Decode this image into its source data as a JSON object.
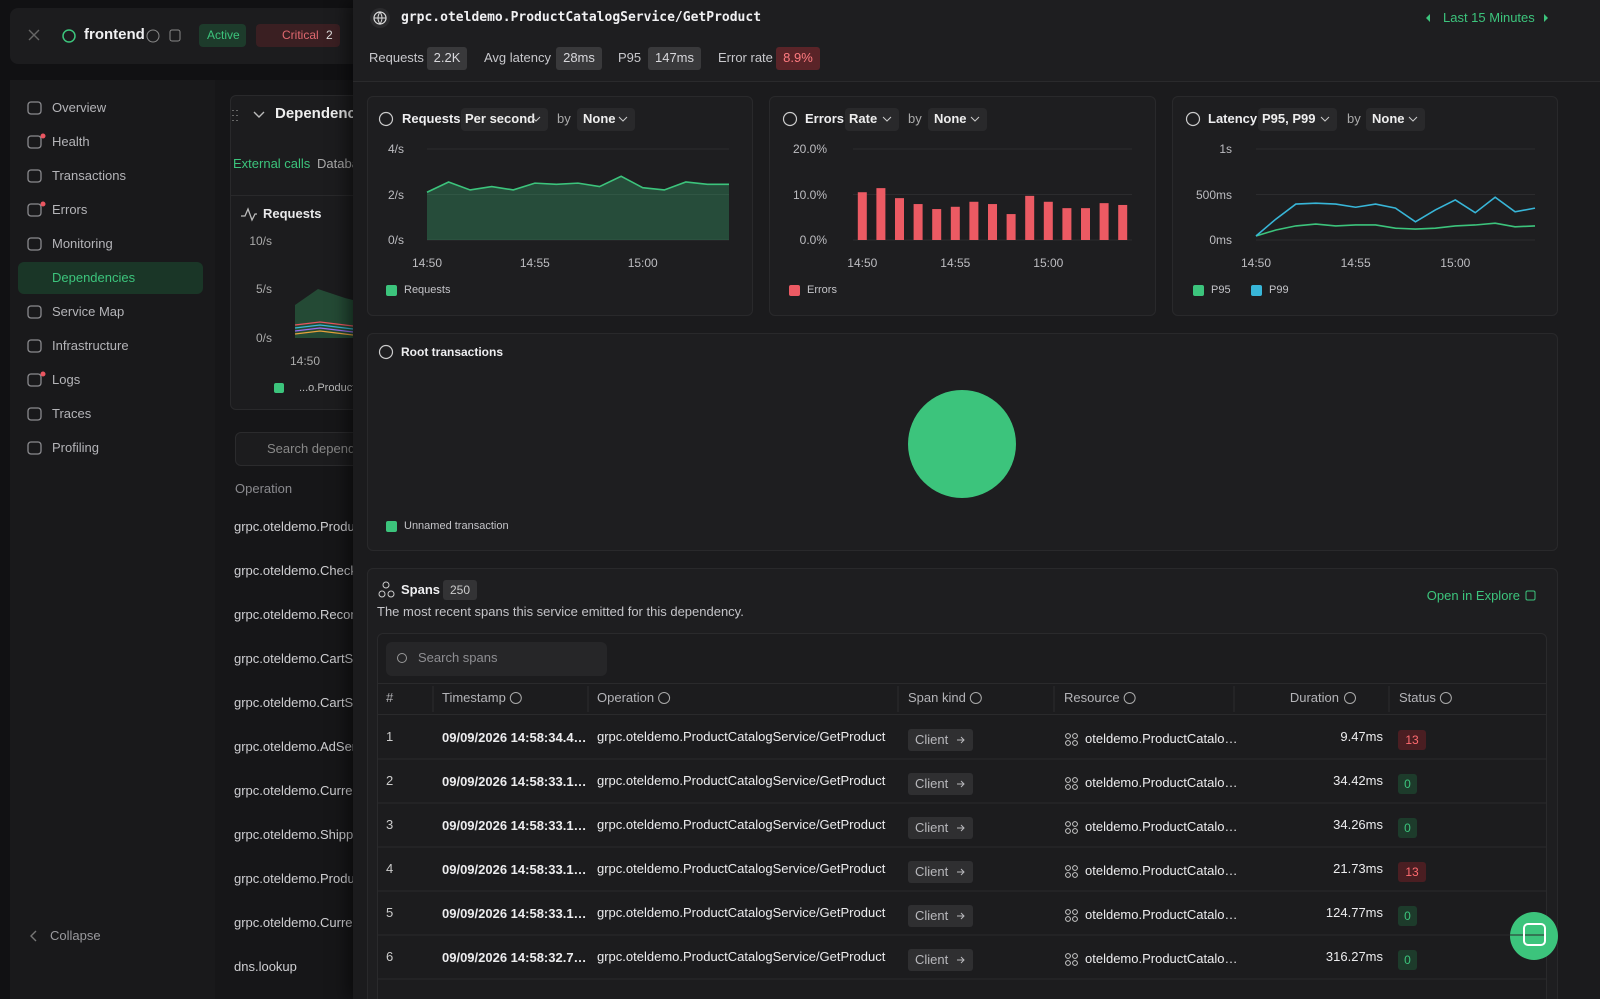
{
  "sidebar": {
    "service": "frontend",
    "state": "Active",
    "alert": "Critical",
    "alert_count": "2",
    "nav": [
      "Overview",
      "Health",
      "Transactions",
      "Errors",
      "Monitoring",
      "Dependencies",
      "Service Map",
      "Infrastructure",
      "Logs",
      "Traces",
      "Profiling"
    ],
    "collapse": "Collapse"
  },
  "background": {
    "title": "Dependenci",
    "tabs": [
      "External calls",
      "Databa"
    ],
    "chart_title": "Requests",
    "yticks": [
      "10/s",
      "5/s",
      "0/s"
    ],
    "xtick": "14:50",
    "legend": "...o.Product",
    "search": "Search depende",
    "column": "Operation",
    "operations": [
      "grpc.oteldemo.Produc",
      "grpc.oteldemo.Checko",
      "grpc.oteldemo.Recomn",
      "grpc.oteldemo.CartSer",
      "grpc.oteldemo.CartSer",
      "grpc.oteldemo.AdServ",
      "grpc.oteldemo.Curren",
      "grpc.oteldemo.Shippir",
      "grpc.oteldemo.Produc",
      "grpc.oteldemo.Curren",
      "dns.lookup"
    ]
  },
  "drawer": {
    "title": "grpc.oteldemo.ProductCatalogService/GetProduct",
    "time_range": "Last 15 Minutes",
    "stats": [
      {
        "label": "Requests",
        "value": "2.2K"
      },
      {
        "label": "Avg latency",
        "value": "28ms"
      },
      {
        "label": "P95",
        "value": "147ms"
      },
      {
        "label": "Error rate",
        "value": "8.9%"
      }
    ]
  },
  "chart_data": [
    {
      "type": "area",
      "title": "Requests",
      "controls": [
        "Per second",
        "by",
        "None"
      ],
      "categories": [
        "14:50",
        null,
        null,
        null,
        null,
        "14:55",
        null,
        null,
        null,
        null,
        "15:00",
        null,
        null,
        null,
        null
      ],
      "series": [
        {
          "name": "Requests",
          "color": "#3cc47c",
          "values": [
            2.1,
            2.55,
            2.2,
            2.35,
            2.2,
            2.5,
            2.45,
            2.5,
            2.35,
            2.8,
            2.3,
            2.2,
            2.55,
            2.45,
            2.45
          ]
        }
      ],
      "ylim": [
        0,
        4
      ],
      "yticks": [
        {
          "value": 0,
          "label": "0/s"
        },
        {
          "value": 2,
          "label": "2/s"
        },
        {
          "value": 4,
          "label": "4/s"
        }
      ],
      "grid": true
    },
    {
      "type": "bar",
      "title": "Errors",
      "controls": [
        "Rate",
        "by",
        "None"
      ],
      "categories": [
        "14:50",
        null,
        null,
        null,
        null,
        "14:55",
        null,
        null,
        null,
        null,
        "15:00",
        null,
        null,
        null,
        null
      ],
      "series": [
        {
          "name": "Errors",
          "color": "#ec5a63",
          "values": [
            10.5,
            11.4,
            9.2,
            7.9,
            6.8,
            7.3,
            8.4,
            7.9,
            5.7,
            9.7,
            8.4,
            7.0,
            7.0,
            8.1,
            7.7
          ]
        }
      ],
      "ylim": [
        0,
        20
      ],
      "yticks": [
        {
          "value": 0,
          "label": "0.0%"
        },
        {
          "value": 10,
          "label": "10.0%"
        },
        {
          "value": 20,
          "label": "20.0%"
        }
      ],
      "grid": true
    },
    {
      "type": "line",
      "title": "Latency",
      "controls": [
        "P95, P99",
        "by",
        "None"
      ],
      "categories": [
        "14:50",
        null,
        null,
        null,
        null,
        "14:55",
        null,
        null,
        null,
        null,
        "15:00",
        null,
        null,
        null,
        null
      ],
      "series": [
        {
          "name": "P95",
          "color": "#3cc47c",
          "values": [
            44,
            110,
            155,
            175,
            155,
            165,
            165,
            130,
            120,
            130,
            155,
            165,
            185,
            145,
            155
          ]
        },
        {
          "name": "P99",
          "color": "#38b6d8",
          "values": [
            44,
            230,
            395,
            405,
            395,
            360,
            395,
            350,
            200,
            330,
            440,
            300,
            470,
            310,
            350
          ]
        }
      ],
      "ylim": [
        0,
        1000
      ],
      "yticks": [
        {
          "value": 0,
          "label": "0ms"
        },
        {
          "value": 500,
          "label": "500ms"
        },
        {
          "value": 1000,
          "label": "1s"
        }
      ],
      "grid": true
    },
    {
      "type": "pie",
      "title": "Root transactions",
      "categories": [
        "Unnamed transaction"
      ],
      "values": [
        100
      ],
      "colors": [
        "#3cc47c"
      ]
    }
  ],
  "spans": {
    "title": "Spans",
    "count": "250",
    "description": "The most recent spans this service emitted for this dependency.",
    "open": "Open in Explore",
    "search": "Search spans",
    "columns": [
      "#",
      "Timestamp",
      "Operation",
      "Span kind",
      "Resource",
      "Duration",
      "Status"
    ],
    "rows": [
      [
        "1",
        "09/09/2026 14:58:34.4…",
        "grpc.oteldemo.ProductCatalogService/GetProduct",
        "Client",
        "oteldemo.ProductCatalo…",
        "9.47ms",
        "13"
      ],
      [
        "2",
        "09/09/2026 14:58:33.1…",
        "grpc.oteldemo.ProductCatalogService/GetProduct",
        "Client",
        "oteldemo.ProductCatalo…",
        "34.42ms",
        "0"
      ],
      [
        "3",
        "09/09/2026 14:58:33.1…",
        "grpc.oteldemo.ProductCatalogService/GetProduct",
        "Client",
        "oteldemo.ProductCatalo…",
        "34.26ms",
        "0"
      ],
      [
        "4",
        "09/09/2026 14:58:33.1…",
        "grpc.oteldemo.ProductCatalogService/GetProduct",
        "Client",
        "oteldemo.ProductCatalo…",
        "21.73ms",
        "13"
      ],
      [
        "5",
        "09/09/2026 14:58:33.1…",
        "grpc.oteldemo.ProductCatalogService/GetProduct",
        "Client",
        "oteldemo.ProductCatalo…",
        "124.77ms",
        "0"
      ],
      [
        "6",
        "09/09/2026 14:58:32.7…",
        "grpc.oteldemo.ProductCatalogService/GetProduct",
        "Client",
        "oteldemo.ProductCatalo…",
        "316.27ms",
        "0"
      ]
    ]
  }
}
